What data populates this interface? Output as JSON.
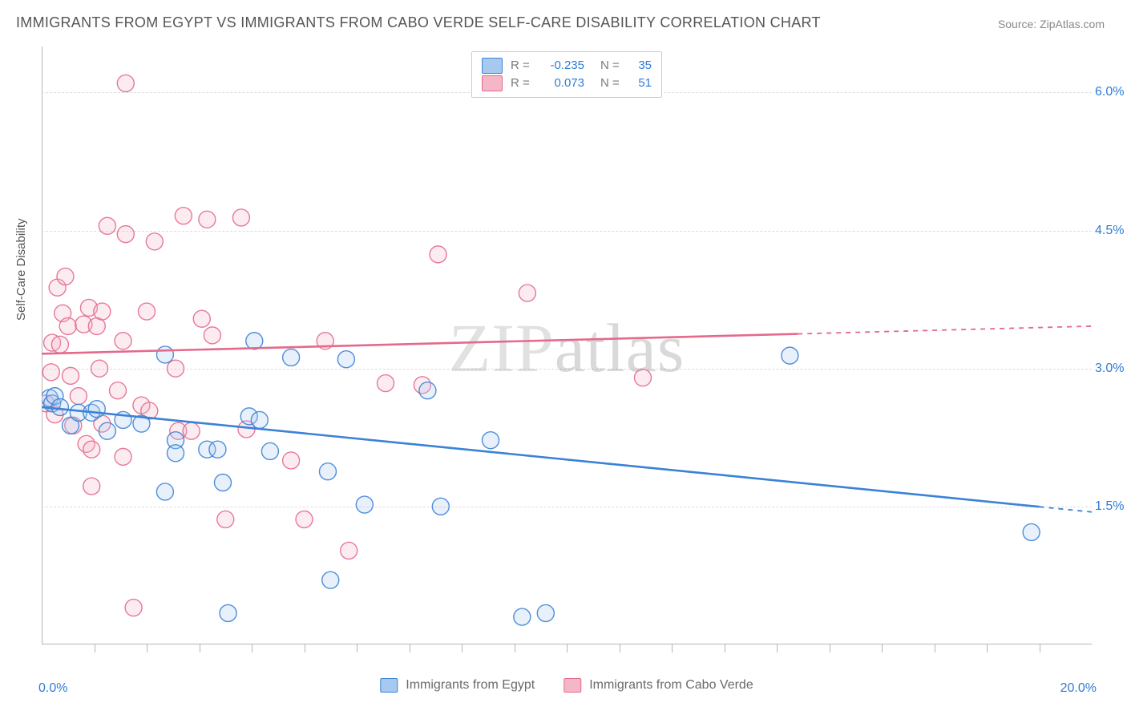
{
  "title": "IMMIGRANTS FROM EGYPT VS IMMIGRANTS FROM CABO VERDE SELF-CARE DISABILITY CORRELATION CHART",
  "source": "Source: ZipAtlas.com",
  "y_axis_label": "Self-Care Disability",
  "watermark": "ZIPatlas",
  "chart": {
    "type": "scatter-with-regression",
    "background_color": "#ffffff",
    "grid_color": "#dcdcdc",
    "axis_color": "#b5b5b5",
    "text_color": "#555555",
    "value_color": "#2e7cd6",
    "xlim": [
      0.0,
      20.0
    ],
    "ylim": [
      0.0,
      6.5
    ],
    "x_ticks": [
      0.0,
      20.0
    ],
    "x_tick_labels": [
      "0.0%",
      "20.0%"
    ],
    "y_ticks": [
      1.5,
      3.0,
      4.5,
      6.0
    ],
    "y_tick_labels": [
      "1.5%",
      "3.0%",
      "4.5%",
      "6.0%"
    ],
    "minor_x_ticks": [
      1,
      2,
      3,
      4,
      5,
      6,
      7,
      8,
      9,
      10,
      11,
      12,
      13,
      14,
      15,
      16,
      17,
      18,
      19
    ],
    "point_radius": 10.5,
    "point_fill_opacity": 0.28,
    "point_stroke_width": 1.4,
    "line_width": 2.6,
    "series": [
      {
        "key": "egypt",
        "label": "Immigrants from Egypt",
        "color": "#3b82d6",
        "fill": "#a8c9ef",
        "R": "-0.235",
        "N": "35",
        "points": [
          [
            0.15,
            2.68
          ],
          [
            0.2,
            2.62
          ],
          [
            0.25,
            2.7
          ],
          [
            0.35,
            2.58
          ],
          [
            0.55,
            2.38
          ],
          [
            0.7,
            2.52
          ],
          [
            0.95,
            2.52
          ],
          [
            1.05,
            2.56
          ],
          [
            1.55,
            2.44
          ],
          [
            1.25,
            2.32
          ],
          [
            1.9,
            2.4
          ],
          [
            2.35,
            3.15
          ],
          [
            2.55,
            2.22
          ],
          [
            2.55,
            2.08
          ],
          [
            2.35,
            1.66
          ],
          [
            3.15,
            2.12
          ],
          [
            3.35,
            2.12
          ],
          [
            3.45,
            1.76
          ],
          [
            3.95,
            2.48
          ],
          [
            4.05,
            3.3
          ],
          [
            4.15,
            2.44
          ],
          [
            4.35,
            2.1
          ],
          [
            4.75,
            3.12
          ],
          [
            5.45,
            1.88
          ],
          [
            5.5,
            0.7
          ],
          [
            5.8,
            3.1
          ],
          [
            6.15,
            1.52
          ],
          [
            7.35,
            2.76
          ],
          [
            7.6,
            1.5
          ],
          [
            8.55,
            2.22
          ],
          [
            9.15,
            0.3
          ],
          [
            9.6,
            0.34
          ],
          [
            14.25,
            3.14
          ],
          [
            18.85,
            1.22
          ],
          [
            3.55,
            0.34
          ]
        ],
        "regression": {
          "x1": 0.0,
          "y1": 2.58,
          "x2": 20.0,
          "y2": 1.44,
          "solid_until_x": 19.0
        }
      },
      {
        "key": "cabo_verde",
        "label": "Immigrants from Cabo Verde",
        "color": "#e46a8c",
        "fill": "#f4b7c8",
        "R": "0.073",
        "N": "51",
        "points": [
          [
            0.08,
            2.62
          ],
          [
            0.18,
            2.96
          ],
          [
            0.2,
            3.28
          ],
          [
            0.25,
            2.5
          ],
          [
            0.3,
            3.88
          ],
          [
            0.35,
            3.26
          ],
          [
            0.4,
            3.6
          ],
          [
            0.45,
            4.0
          ],
          [
            0.5,
            3.46
          ],
          [
            0.55,
            2.92
          ],
          [
            0.6,
            2.38
          ],
          [
            0.7,
            2.7
          ],
          [
            0.8,
            3.48
          ],
          [
            0.85,
            2.18
          ],
          [
            0.9,
            3.66
          ],
          [
            0.95,
            1.72
          ],
          [
            0.95,
            2.12
          ],
          [
            1.05,
            3.46
          ],
          [
            1.1,
            3.0
          ],
          [
            1.15,
            3.62
          ],
          [
            1.15,
            2.4
          ],
          [
            1.25,
            4.55
          ],
          [
            1.45,
            2.76
          ],
          [
            1.55,
            3.3
          ],
          [
            1.55,
            2.04
          ],
          [
            1.6,
            4.46
          ],
          [
            1.6,
            6.1
          ],
          [
            1.75,
            0.4
          ],
          [
            1.9,
            2.6
          ],
          [
            2.0,
            3.62
          ],
          [
            2.05,
            2.54
          ],
          [
            2.15,
            4.38
          ],
          [
            2.55,
            3.0
          ],
          [
            2.6,
            2.32
          ],
          [
            2.7,
            4.66
          ],
          [
            2.85,
            2.32
          ],
          [
            3.05,
            3.54
          ],
          [
            3.15,
            4.62
          ],
          [
            3.25,
            3.36
          ],
          [
            3.5,
            1.36
          ],
          [
            3.8,
            4.64
          ],
          [
            3.9,
            2.34
          ],
          [
            4.75,
            2.0
          ],
          [
            5.4,
            3.3
          ],
          [
            5.85,
            1.02
          ],
          [
            6.55,
            2.84
          ],
          [
            7.25,
            2.82
          ],
          [
            7.55,
            4.24
          ],
          [
            9.25,
            3.82
          ],
          [
            11.45,
            2.9
          ],
          [
            5.0,
            1.36
          ]
        ],
        "regression": {
          "x1": 0.0,
          "y1": 3.16,
          "x2": 20.0,
          "y2": 3.46,
          "solid_until_x": 14.4
        }
      }
    ]
  },
  "legend_top": [
    {
      "swatch_fill": "#a8c9ef",
      "swatch_border": "#3b82d6",
      "R": "-0.235",
      "N": "35"
    },
    {
      "swatch_fill": "#f4b7c8",
      "swatch_border": "#e46a8c",
      "R": "0.073",
      "N": "51"
    }
  ],
  "legend_bottom": [
    {
      "swatch_fill": "#a8c9ef",
      "swatch_border": "#3b82d6",
      "label": "Immigrants from Egypt"
    },
    {
      "swatch_fill": "#f4b7c8",
      "swatch_border": "#e46a8c",
      "label": "Immigrants from Cabo Verde"
    }
  ],
  "labels": {
    "R": "R =",
    "N": "N ="
  }
}
